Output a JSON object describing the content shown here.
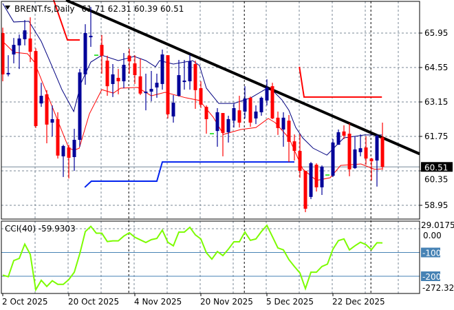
{
  "header": {
    "symbol": "BRENT.fs,Daily",
    "ohlc": "61.71 62.31 60.39 60.51"
  },
  "colors": {
    "bull": "#000099",
    "bear": "#ff0000",
    "doji": "#00dd00",
    "ma_fast": "#000080",
    "ma_slow": "#ff0000",
    "cci": "#7cfc00",
    "trendline": "#000000",
    "level_red": "#ff0000",
    "level_blue": "#0022ee",
    "cci_level": "#4682b4"
  },
  "chart_data": [
    {
      "type": "candlestick",
      "title": "BRENT.fs,Daily",
      "price_axis": {
        "ticks": [
          "65.95",
          "64.55",
          "63.15",
          "61.75",
          "60.35",
          "58.95"
        ],
        "ylim": [
          58.35,
          67.2
        ]
      },
      "current_price": "60.51",
      "x_ticks": [
        {
          "label": "2 Oct 2025",
          "bar": 0
        },
        {
          "label": "20 Oct 2025",
          "bar": 12
        },
        {
          "label": "4 Nov 2025",
          "bar": 24
        },
        {
          "label": "20 Nov 2025",
          "bar": 36
        },
        {
          "label": "5 Dec 2025",
          "bar": 48
        },
        {
          "label": "22 Dec 2025",
          "bar": 60
        }
      ],
      "grid": true,
      "candles_ohlc": [
        [
          65.95,
          66.17,
          63.99,
          64.27
        ],
        [
          64.27,
          65.05,
          64.19,
          64.33
        ],
        [
          65.08,
          65.75,
          64.72,
          65.47
        ],
        [
          65.45,
          65.89,
          64.49,
          65.73
        ],
        [
          65.7,
          66.48,
          65.45,
          66.06
        ],
        [
          65.73,
          66.59,
          64.77,
          65.19
        ],
        [
          65.22,
          65.33,
          62.09,
          62.17
        ],
        [
          63.09,
          63.93,
          62.95,
          63.4
        ],
        [
          63.46,
          63.63,
          61.47,
          62.23
        ],
        [
          62.31,
          63.01,
          61.75,
          62.45
        ],
        [
          62.45,
          62.73,
          60.85,
          60.97
        ],
        [
          60.94,
          61.41,
          60.1,
          61.36
        ],
        [
          61.3,
          61.41,
          60.04,
          60.88
        ],
        [
          60.91,
          62.06,
          60.35,
          61.61
        ],
        [
          61.61,
          64.49,
          61.33,
          64.35
        ],
        [
          64.27,
          66.31,
          63.85,
          65.95
        ],
        [
          65.78,
          67.01,
          65.39,
          65.84
        ],
        [
          65.05,
          65.05,
          65.05,
          65.05
        ],
        [
          65.47,
          65.87,
          64.3,
          65.03
        ],
        [
          64.83,
          65.03,
          63.4,
          63.79
        ],
        [
          63.88,
          64.69,
          63.35,
          64.27
        ],
        [
          64.13,
          64.49,
          63.46,
          63.99
        ],
        [
          63.99,
          65.14,
          63.71,
          64.66
        ],
        [
          65.03,
          65.31,
          64.3,
          64.8
        ],
        [
          64.72,
          65.05,
          63.88,
          64.24
        ],
        [
          64.19,
          64.91,
          63.43,
          63.49
        ],
        [
          63.51,
          64.3,
          62.81,
          63.57
        ],
        [
          63.57,
          64.41,
          63.18,
          63.68
        ],
        [
          63.74,
          64.3,
          63.32,
          63.93
        ],
        [
          63.88,
          65.28,
          63.65,
          65.08
        ],
        [
          65.05,
          65.05,
          62.48,
          62.65
        ],
        [
          62.56,
          63.43,
          62.31,
          63.12
        ],
        [
          63.4,
          64.86,
          63.37,
          64.24
        ],
        [
          63.96,
          64.86,
          63.65,
          64.02
        ],
        [
          63.99,
          65.08,
          63.65,
          64.8
        ],
        [
          64.69,
          64.83,
          62.87,
          63.63
        ],
        [
          63.71,
          63.99,
          62.9,
          63.04
        ],
        [
          62.95,
          63.01,
          61.86,
          62.45
        ],
        [
          61.86,
          61.86,
          61.86,
          61.86
        ],
        [
          61.97,
          62.9,
          61.33,
          62.73
        ],
        [
          62.7,
          62.7,
          60.94,
          61.89
        ],
        [
          61.92,
          62.59,
          61.5,
          62.45
        ],
        [
          62.39,
          63.09,
          62.11,
          62.9
        ],
        [
          62.81,
          63.4,
          62.11,
          62.31
        ],
        [
          62.76,
          63.79,
          62.48,
          63.29
        ],
        [
          63.32,
          63.37,
          62.14,
          62.31
        ],
        [
          62.48,
          63.01,
          62.25,
          62.76
        ],
        [
          62.73,
          63.37,
          62.59,
          63.32
        ],
        [
          63.21,
          64.07,
          63.01,
          63.74
        ],
        [
          63.79,
          63.93,
          62.45,
          62.48
        ],
        [
          62.51,
          62.76,
          61.81,
          62.09
        ],
        [
          62.03,
          62.73,
          61.33,
          62.51
        ],
        [
          62.39,
          62.62,
          60.71,
          61.53
        ],
        [
          61.55,
          61.83,
          60.77,
          61.16
        ],
        [
          61.16,
          61.83,
          60.07,
          60.35
        ],
        [
          60.35,
          60.35,
          58.67,
          58.81
        ],
        [
          59.29,
          60.71,
          59.2,
          60.66
        ],
        [
          60.6,
          60.66,
          59.51,
          59.68
        ],
        [
          59.68,
          60.57,
          59.37,
          60.52
        ],
        [
          60.18,
          60.18,
          60.18,
          60.18
        ],
        [
          60.15,
          61.64,
          60.1,
          61.5
        ],
        [
          61.41,
          62.03,
          61.41,
          61.92
        ],
        [
          61.95,
          62.2,
          61.64,
          61.78
        ],
        [
          61.86,
          62.28,
          60.13,
          60.41
        ],
        [
          60.46,
          61.75,
          60.43,
          61.22
        ],
        [
          61.11,
          61.83,
          60.94,
          61.27
        ],
        [
          61.3,
          61.75,
          60.6,
          60.85
        ],
        [
          60.85,
          60.88,
          59.96,
          60.74
        ],
        [
          60.77,
          61.83,
          59.71,
          61.78
        ],
        [
          61.71,
          62.31,
          60.39,
          60.51
        ]
      ],
      "ma_fast": [
        [
          0,
          67.15
        ],
        [
          2,
          66.4
        ],
        [
          4.75,
          66.43
        ],
        [
          7,
          65.61
        ],
        [
          8.9,
          64.63
        ],
        [
          10.75,
          63.65
        ],
        [
          12.9,
          62.76
        ],
        [
          14.25,
          63.93
        ],
        [
          16,
          64.77
        ],
        [
          18,
          65.05
        ],
        [
          21,
          64.83
        ],
        [
          23.9,
          65.0
        ],
        [
          26,
          64.83
        ],
        [
          27.75,
          64.58
        ],
        [
          28.5,
          64.83
        ],
        [
          31,
          64.69
        ],
        [
          34.5,
          64.83
        ],
        [
          35.75,
          64.63
        ],
        [
          37,
          63.71
        ],
        [
          39.25,
          63.09
        ],
        [
          42,
          63.09
        ],
        [
          45.1,
          63.32
        ],
        [
          47.6,
          63.65
        ],
        [
          48.9,
          63.65
        ],
        [
          50.75,
          63.23
        ],
        [
          52,
          62.81
        ],
        [
          53.25,
          62.11
        ],
        [
          54.5,
          61.69
        ],
        [
          56.4,
          61.27
        ],
        [
          58.9,
          60.99
        ],
        [
          60.75,
          61.41
        ],
        [
          62,
          61.69
        ],
        [
          65.75,
          61.81
        ],
        [
          68.9,
          61.81
        ]
      ],
      "ma_slow": [
        [
          0,
          65.61
        ],
        [
          2,
          65.17
        ],
        [
          4.5,
          65.11
        ],
        [
          5.75,
          64.77
        ],
        [
          7,
          64.07
        ],
        [
          9.5,
          62.67
        ],
        [
          12,
          61.27
        ],
        [
          13,
          61.19
        ],
        [
          13.9,
          61.27
        ],
        [
          15.75,
          62.67
        ],
        [
          18,
          63.65
        ],
        [
          20.1,
          63.51
        ],
        [
          21.4,
          63.71
        ],
        [
          24.5,
          63.74
        ],
        [
          27,
          63.4
        ],
        [
          29.5,
          63.54
        ],
        [
          33.25,
          63.32
        ],
        [
          35.75,
          63.21
        ],
        [
          38.25,
          62.53
        ],
        [
          40.1,
          61.83
        ],
        [
          43.25,
          62.03
        ],
        [
          46,
          62.11
        ],
        [
          48.25,
          62.48
        ],
        [
          49.5,
          62.31
        ],
        [
          52,
          61.69
        ],
        [
          54.5,
          60.43
        ],
        [
          57,
          59.96
        ],
        [
          59.5,
          60.07
        ],
        [
          61.4,
          60.57
        ],
        [
          65.1,
          60.63
        ],
        [
          67.6,
          60.41
        ],
        [
          68.9,
          60.43
        ]
      ],
      "red_levels": [
        [
          [
            9.25,
            67.29
          ],
          [
            11.75,
            65.67
          ],
          [
            14,
            65.67
          ]
        ],
        [
          [
            53.9,
            64.58
          ],
          [
            54.75,
            63.35
          ],
          [
            68.9,
            63.35
          ]
        ]
      ],
      "blue_level": [
        [
          14.9,
          59.68
        ],
        [
          16.1,
          59.93
        ],
        [
          28,
          59.93
        ],
        [
          29,
          60.71
        ],
        [
          53,
          60.71
        ]
      ],
      "trendline": [
        [
          11.5,
          67.29
        ],
        [
          75.75,
          61.04
        ]
      ],
      "separators_bar": [
        22.9,
        43.9,
        66.9
      ]
    },
    {
      "type": "line",
      "title": "CCI(40) -59.9303",
      "ylim": [
        -272.32,
        29.0175
      ],
      "axis_labels": [
        "29.0175",
        "0.00",
        "-100",
        "-200",
        "-272.320"
      ],
      "levels": [
        0,
        -100,
        -200
      ],
      "values": [
        -195,
        -202,
        -134,
        -125,
        -65,
        -108,
        -257,
        -217,
        -243,
        -219,
        -234,
        -234,
        -214,
        -183,
        -105,
        -12,
        10,
        -19,
        -19,
        -54,
        -51,
        -51,
        -31,
        -17,
        -36,
        -47,
        -58,
        -46,
        -41,
        -6,
        -57,
        -72,
        -14,
        -14,
        6,
        -26,
        -43,
        -101,
        -128,
        -96,
        -113,
        -86,
        -55,
        -55,
        -14,
        -49,
        -43,
        -12,
        14,
        -33,
        -81,
        -89,
        -130,
        -159,
        -186,
        -252,
        -183,
        -183,
        -159,
        -149,
        -86,
        -50,
        -43,
        -89,
        -72,
        -57,
        -67,
        -88,
        -59,
        -59.93
      ]
    }
  ]
}
